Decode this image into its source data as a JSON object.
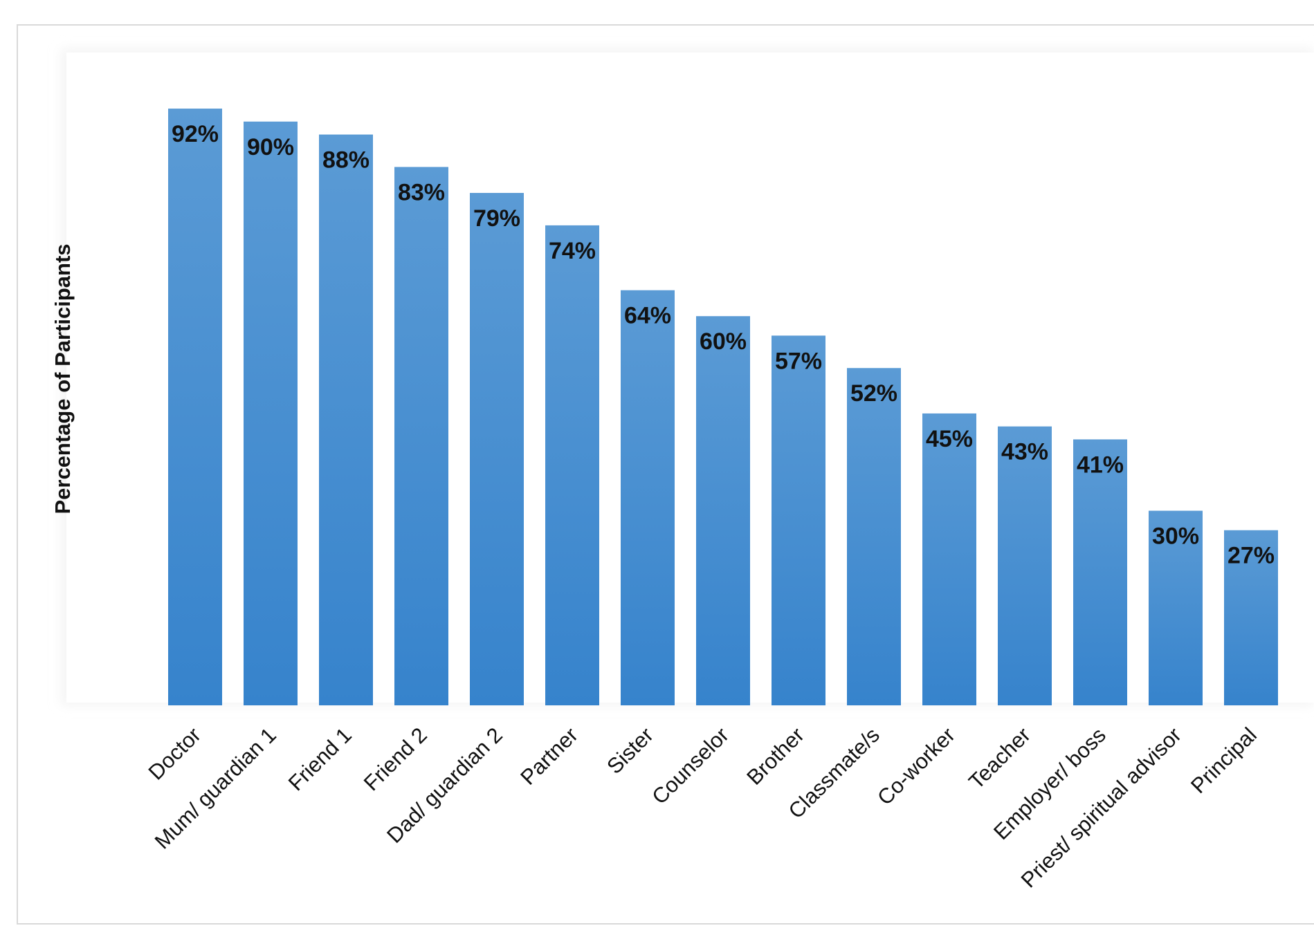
{
  "chart_data": {
    "type": "bar",
    "title": "",
    "xlabel": "",
    "ylabel": "Percentage of Participants",
    "ylim": [
      0,
      100
    ],
    "grid": false,
    "legend": "none",
    "value_suffix": "%",
    "bar_color_top": "#5b9bd5",
    "bar_color_bottom": "#3683cc",
    "categories": [
      "Doctor",
      "Mum/ guardian 1",
      "Friend 1",
      "Friend 2",
      "Dad/ guardian 2",
      "Partner",
      "Sister",
      "Counselor",
      "Brother",
      "Classmate/s",
      "Co-worker",
      "Teacher",
      "Employer/ boss",
      "Priest/ spiritual advisor",
      "Principal"
    ],
    "values": [
      92,
      90,
      88,
      83,
      79,
      74,
      64,
      60,
      57,
      52,
      45,
      43,
      41,
      30,
      27
    ]
  }
}
